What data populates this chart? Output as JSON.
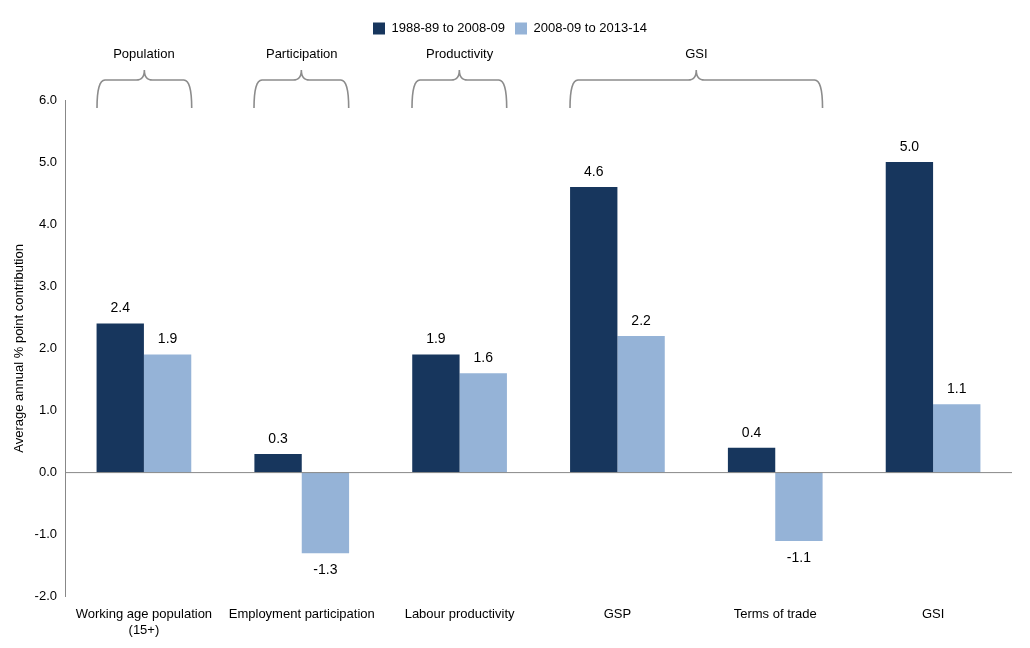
{
  "chart_data": {
    "type": "bar",
    "ylabel": "Average annual % point contribution",
    "categories": [
      "Working age population (15+)",
      "Employment participation",
      "Labour productivity",
      "GSP",
      "Terms of trade",
      "GSI"
    ],
    "series": [
      {
        "name": "1988-89 to 2008-09",
        "color": "#17365d",
        "values": [
          2.4,
          0.3,
          1.9,
          4.6,
          0.4,
          5.0
        ],
        "value_labels": [
          "2.4",
          "0.3",
          "1.9",
          "4.6",
          "0.4",
          "5.0"
        ]
      },
      {
        "name": "2008-09 to 2013-14",
        "color": "#95b3d7",
        "values": [
          1.9,
          -1.3,
          1.6,
          2.2,
          -1.1,
          1.1
        ],
        "value_labels": [
          "1.9",
          "-1.3",
          "1.6",
          "2.2",
          "-1.1",
          "1.1"
        ]
      }
    ],
    "ylim": [
      -2,
      6
    ],
    "yticks": [
      {
        "value": -2,
        "label": "-2.0"
      },
      {
        "value": -1,
        "label": "-1.0"
      },
      {
        "value": 0,
        "label": "0.0"
      },
      {
        "value": 1,
        "label": "1.0"
      },
      {
        "value": 2,
        "label": "2.0"
      },
      {
        "value": 3,
        "label": "3.0"
      },
      {
        "value": 4,
        "label": "4.0"
      },
      {
        "value": 5,
        "label": "5.0"
      },
      {
        "value": 6,
        "label": "6.0"
      }
    ],
    "annotations": [
      "Population",
      "Participation",
      "Productivity",
      "GSI"
    ],
    "ref_lines": [
      {
        "axis": "y",
        "value": 0,
        "color": "#888888"
      }
    ],
    "legend": "top",
    "grid": false
  }
}
